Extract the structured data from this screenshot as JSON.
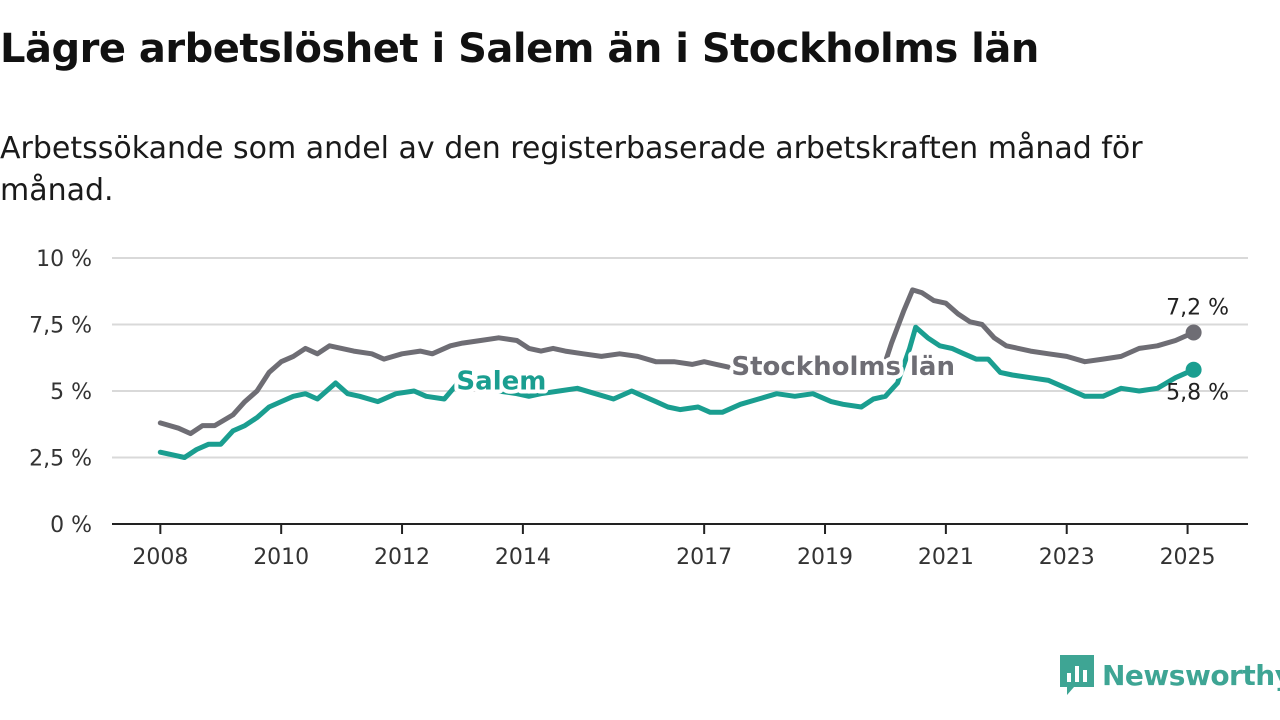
{
  "title": "Lägre arbetslöshet i Salem än i Stockholms län",
  "subtitle": "Arbetssökande som andel av den registerbaserade arbetskraften månad för månad.",
  "brand": {
    "name": "Newsworthy",
    "icon": "newsworthy-logo-icon",
    "color": "#3ea594"
  },
  "chart_data": {
    "type": "line",
    "title": "Lägre arbetslöshet i Salem än i Stockholms län",
    "subtitle": "Arbetssökande som andel av den registerbaserade arbetskraften månad för månad.",
    "ylim": [
      0,
      10
    ],
    "xlim": [
      2007.2,
      2026.0
    ],
    "y_ticks": [
      0,
      2.5,
      5,
      7.5,
      10
    ],
    "y_tick_labels": [
      "0 %",
      "2,5 %",
      "5 %",
      "7,5 %",
      "10 %"
    ],
    "x_ticks": [
      2008,
      2010,
      2012,
      2014,
      2017,
      2019,
      2021,
      2023,
      2025
    ],
    "x_tick_labels": [
      "2008",
      "2010",
      "2012",
      "2014",
      "2017",
      "2019",
      "2021",
      "2023",
      "2025"
    ],
    "grid": "horizontal",
    "series": [
      {
        "name": "Stockholms län",
        "color": "#6e6d74",
        "end_label": "7,2 %",
        "points": [
          [
            2008.0,
            3.8
          ],
          [
            2008.3,
            3.6
          ],
          [
            2008.5,
            3.4
          ],
          [
            2008.7,
            3.7
          ],
          [
            2008.9,
            3.7
          ],
          [
            2009.2,
            4.1
          ],
          [
            2009.4,
            4.6
          ],
          [
            2009.6,
            5.0
          ],
          [
            2009.8,
            5.7
          ],
          [
            2010.0,
            6.1
          ],
          [
            2010.2,
            6.3
          ],
          [
            2010.4,
            6.6
          ],
          [
            2010.6,
            6.4
          ],
          [
            2010.8,
            6.7
          ],
          [
            2011.0,
            6.6
          ],
          [
            2011.2,
            6.5
          ],
          [
            2011.5,
            6.4
          ],
          [
            2011.7,
            6.2
          ],
          [
            2012.0,
            6.4
          ],
          [
            2012.3,
            6.5
          ],
          [
            2012.5,
            6.4
          ],
          [
            2012.8,
            6.7
          ],
          [
            2013.0,
            6.8
          ],
          [
            2013.3,
            6.9
          ],
          [
            2013.6,
            7.0
          ],
          [
            2013.9,
            6.9
          ],
          [
            2014.1,
            6.6
          ],
          [
            2014.3,
            6.5
          ],
          [
            2014.5,
            6.6
          ],
          [
            2014.7,
            6.5
          ],
          [
            2015.0,
            6.4
          ],
          [
            2015.3,
            6.3
          ],
          [
            2015.6,
            6.4
          ],
          [
            2015.9,
            6.3
          ],
          [
            2016.2,
            6.1
          ],
          [
            2016.5,
            6.1
          ],
          [
            2016.8,
            6.0
          ],
          [
            2017.0,
            6.1
          ],
          [
            2017.2,
            6.0
          ],
          [
            2017.4,
            5.9
          ],
          [
            2017.7,
            5.8
          ],
          [
            2018.0,
            6.0
          ],
          [
            2018.3,
            6.0
          ],
          [
            2018.6,
            5.9
          ],
          [
            2018.9,
            5.7
          ],
          [
            2019.2,
            5.6
          ],
          [
            2019.5,
            5.8
          ],
          [
            2019.8,
            5.9
          ],
          [
            2020.0,
            6.1
          ],
          [
            2020.1,
            6.8
          ],
          [
            2020.3,
            8.0
          ],
          [
            2020.45,
            8.8
          ],
          [
            2020.6,
            8.7
          ],
          [
            2020.8,
            8.4
          ],
          [
            2021.0,
            8.3
          ],
          [
            2021.2,
            7.9
          ],
          [
            2021.4,
            7.6
          ],
          [
            2021.6,
            7.5
          ],
          [
            2021.8,
            7.0
          ],
          [
            2022.0,
            6.7
          ],
          [
            2022.2,
            6.6
          ],
          [
            2022.4,
            6.5
          ],
          [
            2022.7,
            6.4
          ],
          [
            2023.0,
            6.3
          ],
          [
            2023.3,
            6.1
          ],
          [
            2023.6,
            6.2
          ],
          [
            2023.9,
            6.3
          ],
          [
            2024.2,
            6.6
          ],
          [
            2024.5,
            6.7
          ],
          [
            2024.8,
            6.9
          ],
          [
            2025.1,
            7.2
          ]
        ]
      },
      {
        "name": "Salem",
        "color": "#1a9e90",
        "end_label": "5,8 %",
        "points": [
          [
            2008.0,
            2.7
          ],
          [
            2008.2,
            2.6
          ],
          [
            2008.4,
            2.5
          ],
          [
            2008.6,
            2.8
          ],
          [
            2008.8,
            3.0
          ],
          [
            2009.0,
            3.0
          ],
          [
            2009.2,
            3.5
          ],
          [
            2009.4,
            3.7
          ],
          [
            2009.6,
            4.0
          ],
          [
            2009.8,
            4.4
          ],
          [
            2010.0,
            4.6
          ],
          [
            2010.2,
            4.8
          ],
          [
            2010.4,
            4.9
          ],
          [
            2010.6,
            4.7
          ],
          [
            2010.9,
            5.3
          ],
          [
            2011.1,
            4.9
          ],
          [
            2011.3,
            4.8
          ],
          [
            2011.6,
            4.6
          ],
          [
            2011.9,
            4.9
          ],
          [
            2012.2,
            5.0
          ],
          [
            2012.4,
            4.8
          ],
          [
            2012.7,
            4.7
          ],
          [
            2013.0,
            5.5
          ],
          [
            2013.3,
            5.2
          ],
          [
            2013.6,
            5.0
          ],
          [
            2013.9,
            4.9
          ],
          [
            2014.1,
            4.8
          ],
          [
            2014.3,
            4.9
          ],
          [
            2014.6,
            5.0
          ],
          [
            2014.9,
            5.1
          ],
          [
            2015.2,
            4.9
          ],
          [
            2015.5,
            4.7
          ],
          [
            2015.8,
            5.0
          ],
          [
            2016.0,
            4.8
          ],
          [
            2016.2,
            4.6
          ],
          [
            2016.4,
            4.4
          ],
          [
            2016.6,
            4.3
          ],
          [
            2016.9,
            4.4
          ],
          [
            2017.1,
            4.2
          ],
          [
            2017.3,
            4.2
          ],
          [
            2017.6,
            4.5
          ],
          [
            2017.9,
            4.7
          ],
          [
            2018.2,
            4.9
          ],
          [
            2018.5,
            4.8
          ],
          [
            2018.8,
            4.9
          ],
          [
            2019.1,
            4.6
          ],
          [
            2019.3,
            4.5
          ],
          [
            2019.6,
            4.4
          ],
          [
            2019.8,
            4.7
          ],
          [
            2020.0,
            4.8
          ],
          [
            2020.2,
            5.3
          ],
          [
            2020.4,
            6.6
          ],
          [
            2020.5,
            7.4
          ],
          [
            2020.7,
            7.0
          ],
          [
            2020.9,
            6.7
          ],
          [
            2021.1,
            6.6
          ],
          [
            2021.3,
            6.4
          ],
          [
            2021.5,
            6.2
          ],
          [
            2021.7,
            6.2
          ],
          [
            2021.9,
            5.7
          ],
          [
            2022.1,
            5.6
          ],
          [
            2022.4,
            5.5
          ],
          [
            2022.7,
            5.4
          ],
          [
            2023.0,
            5.1
          ],
          [
            2023.3,
            4.8
          ],
          [
            2023.6,
            4.8
          ],
          [
            2023.9,
            5.1
          ],
          [
            2024.2,
            5.0
          ],
          [
            2024.5,
            5.1
          ],
          [
            2024.8,
            5.5
          ],
          [
            2025.1,
            5.8
          ]
        ]
      }
    ]
  }
}
